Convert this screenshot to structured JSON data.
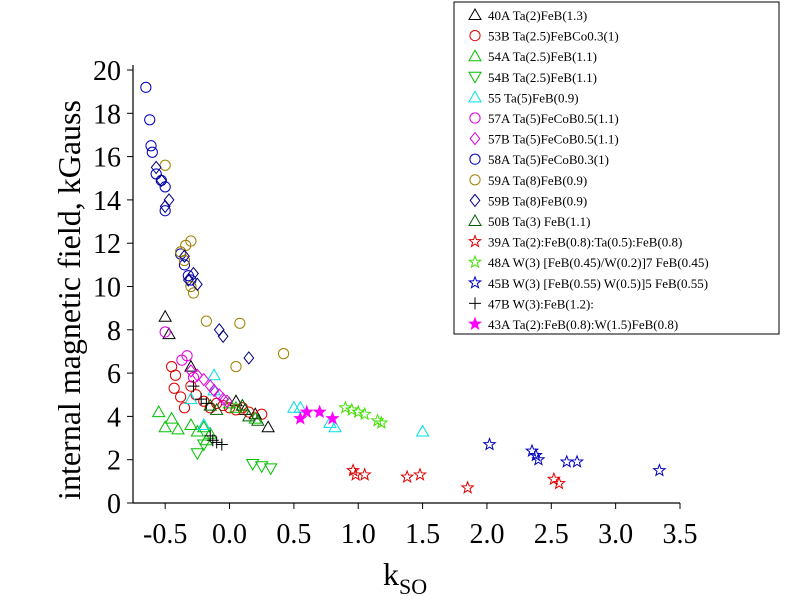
{
  "chart_data": {
    "type": "scatter",
    "xlabel": "k",
    "xlabel_sub": "SO",
    "ylabel": "internal magnetic field, kGauss",
    "xlim": [
      -0.75,
      3.5
    ],
    "ylim": [
      0,
      20
    ],
    "xticks": [
      "-0.5",
      "0.0",
      "0.5",
      "1.0",
      "1.5",
      "2.0",
      "2.5",
      "3.0",
      "3.5"
    ],
    "yticks": [
      "0",
      "2",
      "4",
      "6",
      "8",
      "10",
      "12",
      "14",
      "16",
      "18",
      "20"
    ],
    "legend_position": "top-right",
    "series": [
      {
        "name": "40A Ta(2)FeB(1.3)",
        "marker": "triangle-up",
        "color": "#000000",
        "filled": false,
        "points": [
          [
            -0.5,
            8.6
          ],
          [
            -0.47,
            7.8
          ],
          [
            -0.3,
            6.3
          ],
          [
            0.05,
            4.7
          ],
          [
            0.12,
            4.3
          ],
          [
            0.2,
            4.1
          ],
          [
            0.3,
            3.5
          ]
        ]
      },
      {
        "name": "53B Ta(2.5)FeBCo0.3(1)",
        "marker": "circle",
        "color": "#e00000",
        "filled": false,
        "points": [
          [
            -0.45,
            6.3
          ],
          [
            -0.42,
            5.9
          ],
          [
            -0.43,
            5.3
          ],
          [
            -0.38,
            4.9
          ],
          [
            -0.35,
            4.4
          ],
          [
            -0.3,
            5.4
          ],
          [
            -0.26,
            5.0
          ],
          [
            -0.2,
            4.7
          ],
          [
            -0.15,
            4.4
          ],
          [
            -0.1,
            4.6
          ],
          [
            -0.05,
            4.5
          ],
          [
            0.0,
            4.4
          ],
          [
            0.05,
            4.3
          ],
          [
            0.1,
            4.4
          ],
          [
            0.15,
            4.2
          ],
          [
            0.25,
            4.1
          ]
        ]
      },
      {
        "name": "54A Ta(2.5)FeB(1.1)",
        "marker": "triangle-up",
        "color": "#00c000",
        "filled": false,
        "points": [
          [
            -0.55,
            4.2
          ],
          [
            -0.5,
            3.5
          ],
          [
            -0.45,
            3.9
          ],
          [
            -0.4,
            3.4
          ],
          [
            -0.3,
            3.6
          ],
          [
            -0.25,
            3.3
          ],
          [
            -0.2,
            3.5
          ],
          [
            -0.18,
            2.9
          ],
          [
            -0.15,
            3.2
          ],
          [
            0.0,
            4.6
          ],
          [
            0.05,
            4.4
          ],
          [
            0.1,
            4.5
          ],
          [
            0.2,
            3.9
          ]
        ]
      },
      {
        "name": "54B Ta(2.5)FeB(1.1)",
        "marker": "triangle-down",
        "color": "#00c000",
        "filled": false,
        "points": [
          [
            -0.25,
            2.3
          ],
          [
            -0.2,
            2.7
          ],
          [
            0.18,
            1.8
          ],
          [
            0.25,
            1.7
          ],
          [
            0.32,
            1.6
          ]
        ]
      },
      {
        "name": "55 Ta(5)FeB(0.9)",
        "marker": "triangle-up",
        "color": "#00e0e0",
        "filled": false,
        "points": [
          [
            -0.3,
            4.8
          ],
          [
            -0.2,
            3.6
          ],
          [
            -0.12,
            5.9
          ],
          [
            -0.12,
            5.2
          ],
          [
            0.5,
            4.4
          ],
          [
            0.55,
            4.4
          ],
          [
            0.78,
            3.7
          ],
          [
            0.82,
            3.5
          ],
          [
            1.5,
            3.3
          ]
        ]
      },
      {
        "name": "57A Ta(5)FeCoB0.5(1.1)",
        "marker": "circle",
        "color": "#e000e0",
        "filled": false,
        "points": [
          [
            -0.5,
            7.9
          ],
          [
            -0.37,
            6.6
          ],
          [
            -0.33,
            6.8
          ],
          [
            -0.28,
            5.8
          ]
        ]
      },
      {
        "name": "57B Ta(5)FeCoB0.5(1.1)",
        "marker": "diamond",
        "color": "#e000e0",
        "filled": false,
        "points": [
          [
            -0.3,
            6.1
          ],
          [
            -0.25,
            5.9
          ],
          [
            -0.2,
            5.7
          ],
          [
            -0.15,
            5.4
          ],
          [
            -0.12,
            5.2
          ],
          [
            -0.08,
            5.0
          ],
          [
            -0.05,
            4.8
          ],
          [
            -0.02,
            4.7
          ]
        ]
      },
      {
        "name": "58A Ta(5)FeCoB0.3(1)",
        "marker": "circle",
        "color": "#0000c0",
        "filled": false,
        "points": [
          [
            -0.65,
            19.2
          ],
          [
            -0.62,
            17.7
          ],
          [
            -0.61,
            16.5
          ],
          [
            -0.6,
            16.2
          ],
          [
            -0.57,
            15.2
          ],
          [
            -0.53,
            14.9
          ],
          [
            -0.5,
            14.6
          ],
          [
            -0.5,
            13.5
          ],
          [
            -0.38,
            11.5
          ],
          [
            -0.35,
            11.0
          ],
          [
            -0.32,
            10.5
          ],
          [
            -0.3,
            10.3
          ]
        ]
      },
      {
        "name": "59A Ta(8)FeB(0.9)",
        "marker": "circle",
        "color": "#a08000",
        "filled": false,
        "points": [
          [
            -0.5,
            15.6
          ],
          [
            -0.38,
            11.6
          ],
          [
            -0.34,
            11.9
          ],
          [
            -0.3,
            12.1
          ],
          [
            -0.35,
            11.2
          ],
          [
            -0.3,
            10.0
          ],
          [
            -0.28,
            9.7
          ],
          [
            -0.18,
            8.4
          ],
          [
            0.08,
            8.3
          ],
          [
            0.05,
            6.3
          ],
          [
            0.42,
            6.9
          ]
        ]
      },
      {
        "name": "59B Ta(8)FeB(0.9)",
        "marker": "diamond",
        "color": "#000080",
        "filled": false,
        "points": [
          [
            -0.57,
            15.5
          ],
          [
            -0.53,
            14.9
          ],
          [
            -0.47,
            14.0
          ],
          [
            -0.5,
            13.7
          ],
          [
            -0.35,
            11.4
          ],
          [
            -0.32,
            10.3
          ],
          [
            -0.28,
            10.6
          ],
          [
            -0.25,
            10.1
          ],
          [
            -0.08,
            8.0
          ],
          [
            -0.05,
            7.7
          ],
          [
            0.15,
            6.7
          ]
        ]
      },
      {
        "name": "50B Ta(3) FeB(1.1)",
        "marker": "triangle-up",
        "color": "#006000",
        "filled": false,
        "points": [
          [
            -0.15,
            4.5
          ],
          [
            -0.1,
            4.3
          ],
          [
            0.1,
            4.5
          ],
          [
            0.15,
            4.0
          ],
          [
            0.22,
            3.8
          ]
        ]
      },
      {
        "name": "39A Ta(2):FeB(0.8):Ta(0.5):FeB(0.8)",
        "marker": "star",
        "color": "#e00000",
        "filled": false,
        "points": [
          [
            0.96,
            1.5
          ],
          [
            0.98,
            1.3
          ],
          [
            1.05,
            1.3
          ],
          [
            1.38,
            1.2
          ],
          [
            1.48,
            1.3
          ],
          [
            1.85,
            0.7
          ],
          [
            2.52,
            1.1
          ],
          [
            2.56,
            0.9
          ]
        ]
      },
      {
        "name": "48A W(3) [FeB(0.45)/W(0.2)]7 FeB(0.45)",
        "marker": "star",
        "color": "#40e000",
        "filled": false,
        "points": [
          [
            0.9,
            4.4
          ],
          [
            0.95,
            4.3
          ],
          [
            1.0,
            4.2
          ],
          [
            1.05,
            4.1
          ],
          [
            1.15,
            3.8
          ],
          [
            1.18,
            3.7
          ]
        ]
      },
      {
        "name": "45B W(3) [FeB(0.55) W(0.5)]5 FeB(0.55)",
        "marker": "star",
        "color": "#0000c0",
        "filled": false,
        "points": [
          [
            2.02,
            2.7
          ],
          [
            2.35,
            2.4
          ],
          [
            2.38,
            2.2
          ],
          [
            2.4,
            2.0
          ],
          [
            2.62,
            1.9
          ],
          [
            2.7,
            1.9
          ],
          [
            3.34,
            1.5
          ]
        ]
      },
      {
        "name": "47B W(3):FeB(1.2):",
        "marker": "plus",
        "color": "#000000",
        "filled": false,
        "points": [
          [
            -0.28,
            5.4
          ],
          [
            -0.22,
            4.8
          ],
          [
            -0.18,
            4.6
          ],
          [
            -0.15,
            3.1
          ],
          [
            -0.13,
            2.9
          ],
          [
            -0.1,
            2.8
          ],
          [
            -0.06,
            2.7
          ]
        ]
      },
      {
        "name": "43A Ta(2):FeB(0.8):W(1.5)FeB(0.8)",
        "marker": "star",
        "color": "#ff00ff",
        "filled": true,
        "points": [
          [
            0.55,
            3.9
          ],
          [
            0.6,
            4.2
          ],
          [
            0.7,
            4.2
          ],
          [
            0.8,
            3.9
          ]
        ]
      }
    ]
  }
}
